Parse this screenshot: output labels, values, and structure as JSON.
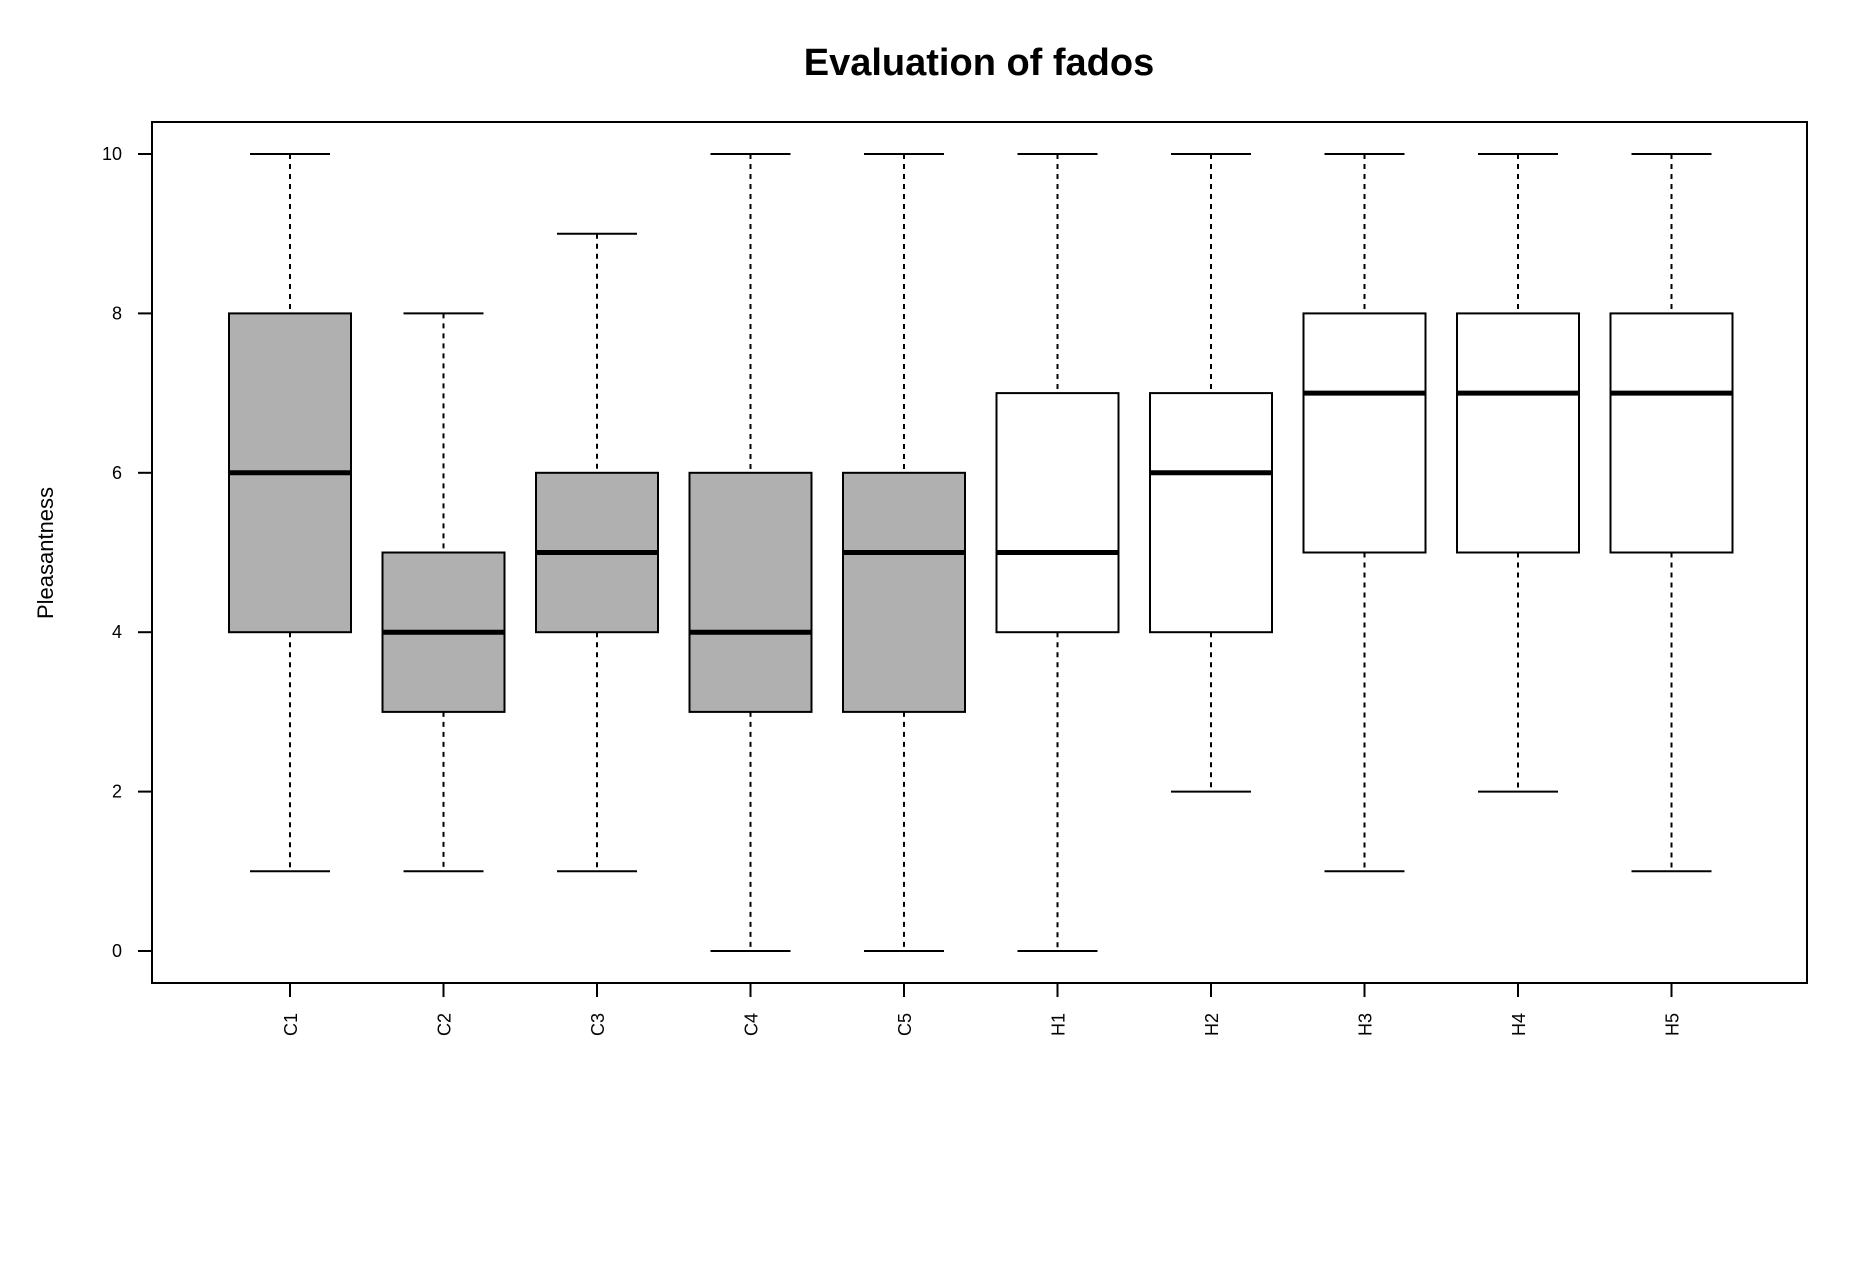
{
  "chart_data": {
    "type": "boxplot",
    "title": "Evaluation of fados",
    "xlabel": "",
    "ylabel": "Pleasantness",
    "ylim": [
      0,
      10
    ],
    "yticks": [
      "0",
      "2",
      "4",
      "6",
      "8",
      "10"
    ],
    "grid": false,
    "legend": "none",
    "categories": [
      "C1",
      "C2",
      "C3",
      "C4",
      "C5",
      "H1",
      "H2",
      "H3",
      "H4",
      "H5"
    ],
    "boxes": [
      {
        "name": "C1",
        "min": 1,
        "q1": 4,
        "median": 6,
        "q3": 8,
        "max": 10,
        "fill": "#b0b0b0"
      },
      {
        "name": "C2",
        "min": 1,
        "q1": 3,
        "median": 4,
        "q3": 5,
        "max": 8,
        "fill": "#b0b0b0"
      },
      {
        "name": "C3",
        "min": 1,
        "q1": 4,
        "median": 5,
        "q3": 6,
        "max": 9,
        "fill": "#b0b0b0"
      },
      {
        "name": "C4",
        "min": 0,
        "q1": 3,
        "median": 4,
        "q3": 6,
        "max": 10,
        "fill": "#b0b0b0"
      },
      {
        "name": "C5",
        "min": 0,
        "q1": 3,
        "median": 5,
        "q3": 6,
        "max": 10,
        "fill": "#b0b0b0"
      },
      {
        "name": "H1",
        "min": 0,
        "q1": 4,
        "median": 5,
        "q3": 7,
        "max": 10,
        "fill": "#ffffff"
      },
      {
        "name": "H2",
        "min": 2,
        "q1": 4,
        "median": 6,
        "q3": 7,
        "max": 10,
        "fill": "#ffffff"
      },
      {
        "name": "H3",
        "min": 1,
        "q1": 5,
        "median": 7,
        "q3": 8,
        "max": 10,
        "fill": "#ffffff"
      },
      {
        "name": "H4",
        "min": 2,
        "q1": 5,
        "median": 7,
        "q3": 8,
        "max": 10,
        "fill": "#ffffff"
      },
      {
        "name": "H5",
        "min": 1,
        "q1": 5,
        "median": 7,
        "q3": 8,
        "max": 10,
        "fill": "#ffffff"
      }
    ]
  }
}
